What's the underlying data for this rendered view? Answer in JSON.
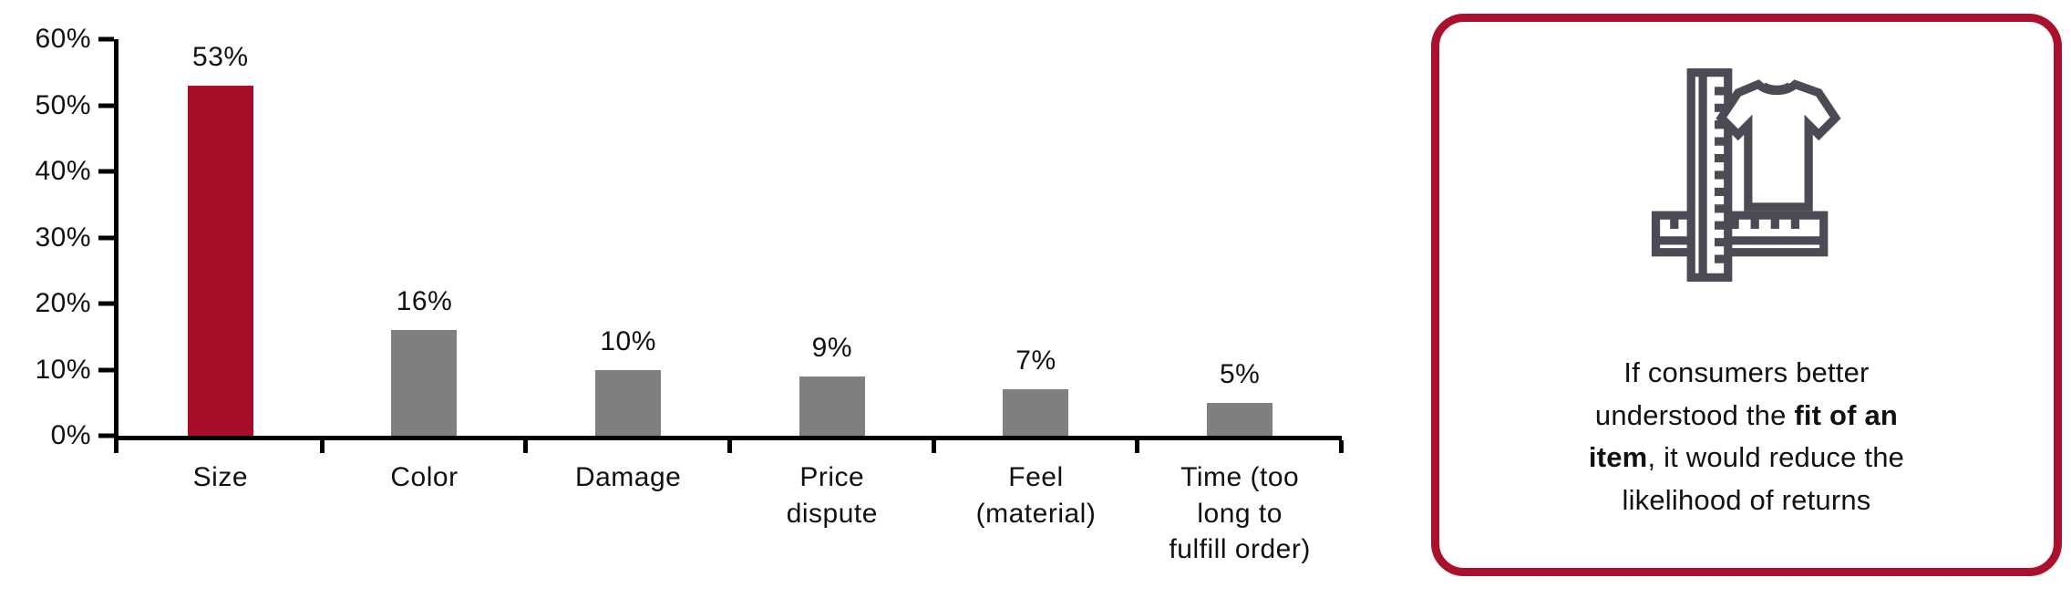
{
  "chart_data": {
    "type": "bar",
    "title": "",
    "categories": [
      "Size",
      "Color",
      "Damage",
      "Price\ndispute",
      "Feel\n(material)",
      "Time (too\nlong to\nfulfill order)"
    ],
    "values": [
      53,
      16,
      10,
      9,
      7,
      5
    ],
    "value_labels": [
      "53%",
      "16%",
      "10%",
      "9%",
      "7%",
      "5%"
    ],
    "highlighted_category": "Size",
    "bar_color_highlight": "#A80E2A",
    "bar_color_default": "#7F7F7F",
    "axis_color": "#000000",
    "xlabel": "",
    "ylabel": "",
    "ylim": [
      0,
      60
    ],
    "ytick_labels": [
      "0%",
      "10%",
      "20%",
      "30%",
      "40%",
      "50%",
      "60%"
    ],
    "grid": false,
    "legend": false
  },
  "callout": {
    "border_color": "#AB102C",
    "icon": "ruler-and-tshirt-icon",
    "icon_color": "#4B4B55",
    "text_plain": "If consumers better understood the fit of an item, it would reduce the likelihood of returns",
    "text_segments": [
      {
        "text": "If consumers better\nunderstood the ",
        "bold": false
      },
      {
        "text": "fit of an\nitem",
        "bold": true
      },
      {
        "text": ", it would reduce the\nlikelihood of returns",
        "bold": false
      }
    ]
  }
}
